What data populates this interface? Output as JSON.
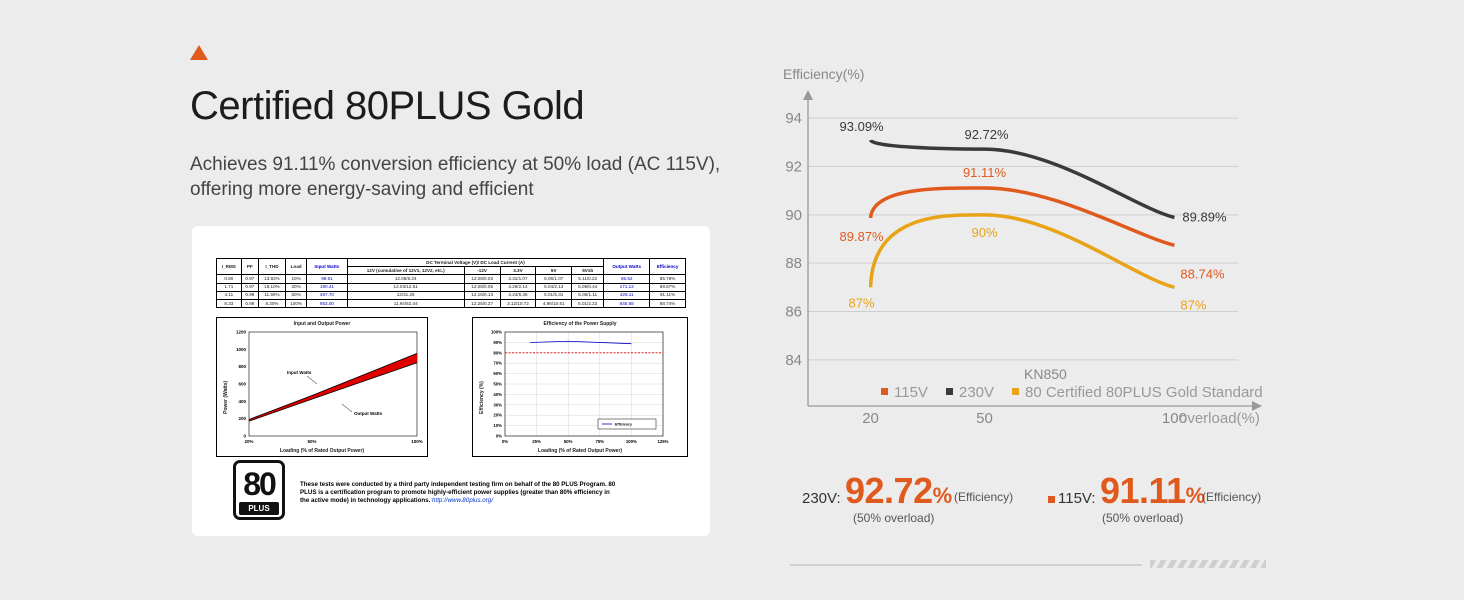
{
  "header": {
    "title": "Certified 80PLUS Gold",
    "subtitle_line1": "Achieves 91.11% conversion efficiency at 50% load (AC 115V),",
    "subtitle_line2": "offering more energy-saving and efficient",
    "accent_color": "#e05a1e"
  },
  "report": {
    "table": {
      "headers": [
        "I_RMS",
        "PF",
        "I_THD",
        "Load",
        "Input Watts",
        "DC Terminal Voltage (V)/ DC Load Current (A)",
        "Output Watts",
        "Efficiency"
      ],
      "subheaders": [
        "12V (cumulative of 12V1, 12V2, etc.)",
        "-12V",
        "3.3V",
        "5V",
        "5Vsb"
      ],
      "rows": [
        [
          "0.80",
          "0.97",
          "13.92%",
          "10%",
          "99.61",
          "12.05/6.24",
          "12.08/0.03",
          "3.31/1.07",
          "5.06/1.07",
          "5.11/0.22",
          "85.62",
          "85.78%"
        ],
        [
          "1.71",
          "0.97",
          "18.10%",
          "20%",
          "190.41",
          "12.03/12.51",
          "12.08/0.05",
          "3.29/2.14",
          "5.04/2.13",
          "5.09/0.44",
          "171.13",
          "89.87%"
        ],
        [
          "4.11",
          "0.99",
          "11.90%",
          "50%",
          "467.70",
          "12/31.26",
          "12.16/0.13",
          "3.24/5.36",
          "5.01/5.31",
          "5.06/1.11",
          "426.11",
          "91.11%"
        ],
        [
          "8.33",
          "0.99",
          "8.30%",
          "100%",
          "953.00",
          "11.94/62.44",
          "12.25/0.27",
          "3.12/10.72",
          "4.96/10.61",
          "5.01/2.22",
          "845.68",
          "88.74%"
        ]
      ]
    },
    "power_chart": {
      "title": "Input and Output Power",
      "xlabel": "Loading (% of Rated Output Power)",
      "ylabel": "Power (Watts)",
      "y_ticks": [
        "1200",
        "1000",
        "800",
        "600",
        "400",
        "200",
        "0"
      ],
      "x_ticks": [
        "20%",
        "50%",
        "100%"
      ],
      "input_label": "Input Watts",
      "output_label": "Output Watts"
    },
    "eff_chart": {
      "title": "Efficiency of the Power Supply",
      "xlabel": "Loading (% of Rated Output Power)",
      "ylabel": "Efficiency (%)",
      "y_ticks": [
        "100%",
        "90%",
        "80%",
        "70%",
        "60%",
        "50%",
        "40%",
        "30%",
        "20%",
        "10%",
        "0%"
      ],
      "x_ticks": [
        "0%",
        "25%",
        "50%",
        "75%",
        "100%",
        "125%"
      ],
      "legend": "Efficiency"
    },
    "logo_number": "80",
    "logo_plus": "PLUS",
    "note": "These tests were conducted by a third party independent testing firm on behalf of the 80 PLUS Program. 80 PLUS is a certification program to promote highly-efficient power supplies (greater than 80% efficiency in the active mode) in technology applications.",
    "note_link": "http://www.80plus.org/"
  },
  "chart_data": {
    "type": "line",
    "title": "KN850",
    "ylabel": "Efficiency(%)",
    "xlabel": "overload(%)",
    "x": [
      20,
      50,
      100
    ],
    "x_tick_labels": [
      "20",
      "50",
      "100"
    ],
    "y_ticks": [
      84,
      86,
      88,
      90,
      92,
      94
    ],
    "ylim": [
      83,
      95
    ],
    "xlim": [
      8,
      112
    ],
    "grid": true,
    "legend_position": "bottom",
    "series": [
      {
        "name": "115V",
        "color": "#e05a1e",
        "values": [
          89.87,
          91.11,
          88.74
        ],
        "labels": [
          "89.87%",
          "91.11%",
          "88.74%"
        ]
      },
      {
        "name": "230V",
        "color": "#3a3a3a",
        "values": [
          93.09,
          92.72,
          89.89
        ],
        "labels": [
          "93.09%",
          "92.72%",
          "89.89%"
        ]
      },
      {
        "name": "80 Certified 80PLUS Gold Standard",
        "color": "#e8a317",
        "values": [
          87,
          90,
          87
        ],
        "labels": [
          "87%",
          "90%",
          "87%"
        ]
      }
    ]
  },
  "stats": {
    "s230": {
      "label": "230V:",
      "value": "92.72",
      "unit": "%",
      "eff": "(Efficiency)",
      "sub": "(50% overload)"
    },
    "s115": {
      "label": "115V:",
      "value": "91.11",
      "unit": "%",
      "eff": "(Efficiency)",
      "sub": "(50% overload)"
    }
  }
}
